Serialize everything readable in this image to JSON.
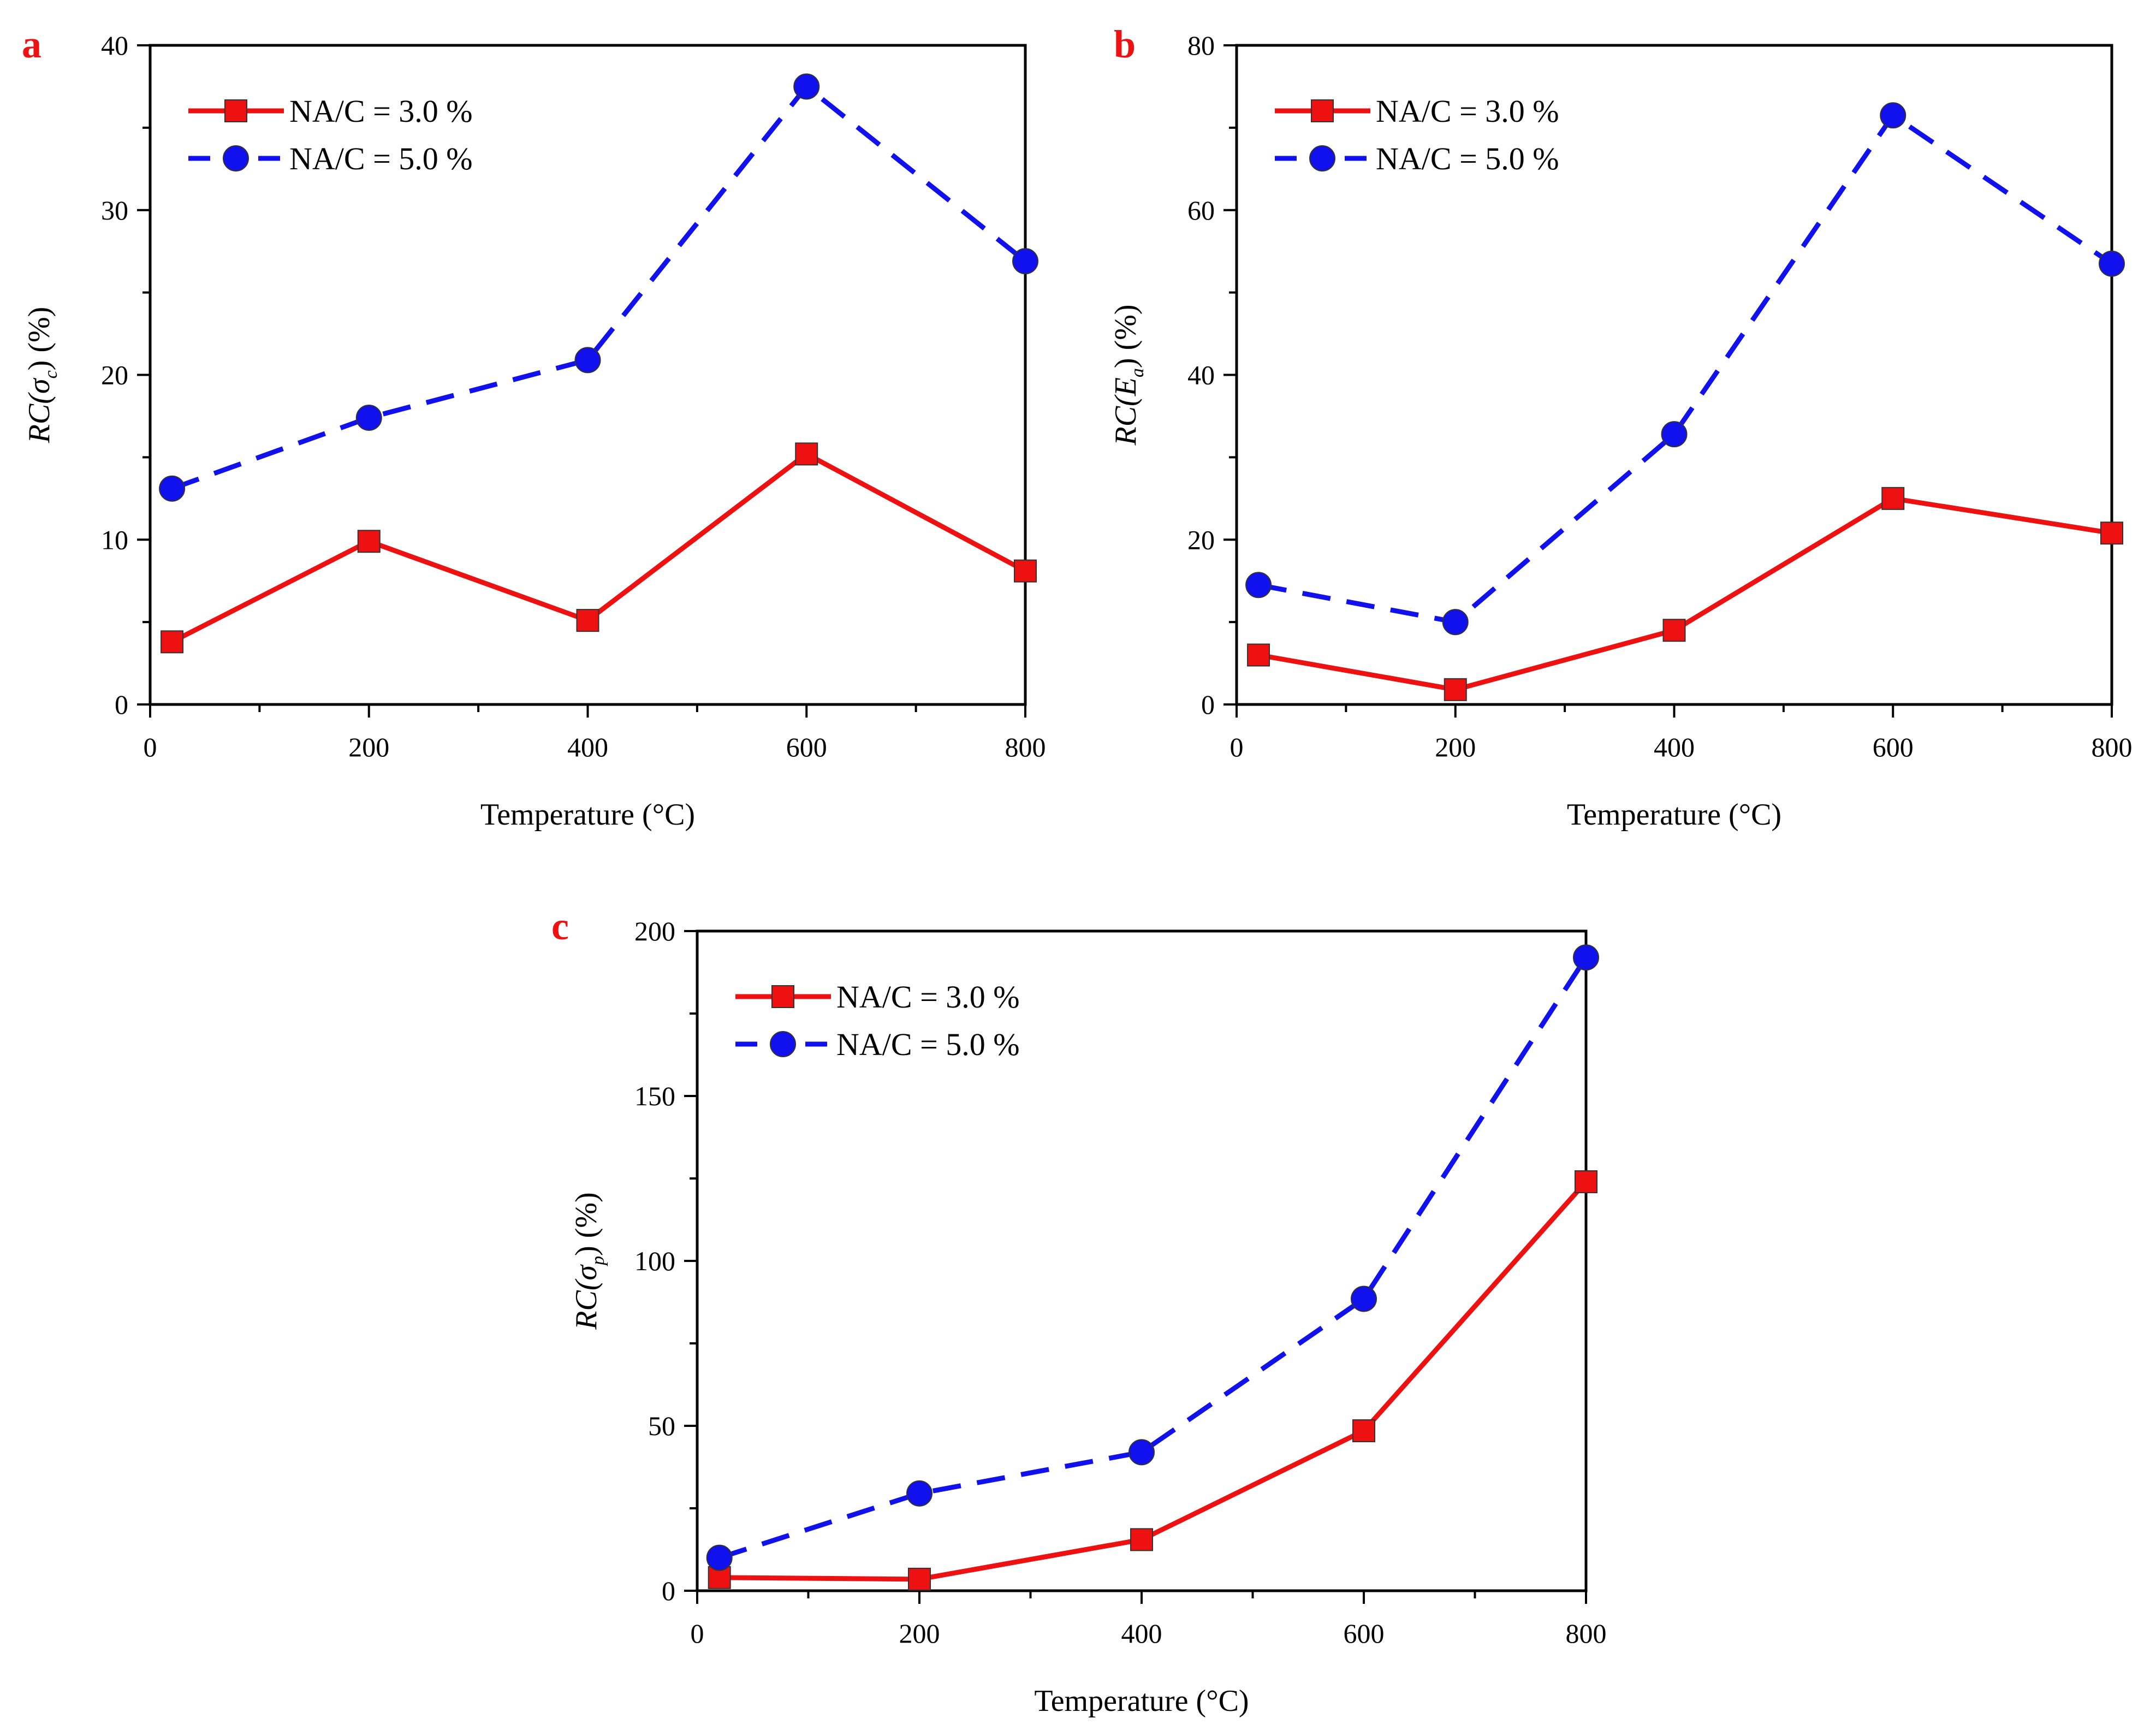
{
  "chart_data": [
    {
      "panel": "a",
      "type": "line",
      "xlabel": "Temperature (°C)",
      "ylabel": {
        "prefix": "RC(",
        "symbol": "σ",
        "subscript": "c",
        "suffix": ") (%)"
      },
      "xlim": [
        0,
        800
      ],
      "ylim": [
        0,
        40
      ],
      "xticks": [
        0,
        200,
        400,
        600,
        800
      ],
      "yticks": [
        0,
        10,
        20,
        30,
        40
      ],
      "x": [
        20,
        200,
        400,
        600,
        800
      ],
      "legend_position": "top-left",
      "series": [
        {
          "name": "NA/C = 3.0 %",
          "color": "#ee1111",
          "marker": "square",
          "dash": "solid",
          "values": [
            3.8,
            9.9,
            5.1,
            15.2,
            8.1
          ]
        },
        {
          "name": "NA/C = 5.0 %",
          "color": "#1111ee",
          "marker": "circle",
          "dash": "dashed",
          "values": [
            13.1,
            17.4,
            20.9,
            37.5,
            26.9
          ]
        }
      ]
    },
    {
      "panel": "b",
      "type": "line",
      "xlabel": "Temperature (°C)",
      "ylabel": {
        "prefix": "RC(",
        "symbol": "E",
        "subscript": "a",
        "suffix": ") (%)"
      },
      "xlim": [
        0,
        800
      ],
      "ylim": [
        0,
        80
      ],
      "xticks": [
        0,
        200,
        400,
        600,
        800
      ],
      "yticks": [
        0,
        20,
        40,
        60,
        80
      ],
      "x": [
        20,
        200,
        400,
        600,
        800
      ],
      "legend_position": "top-left",
      "series": [
        {
          "name": "NA/C = 3.0 %",
          "color": "#ee1111",
          "marker": "square",
          "dash": "solid",
          "values": [
            6.0,
            1.8,
            9.0,
            25.0,
            20.8
          ]
        },
        {
          "name": "NA/C = 5.0 %",
          "color": "#1111ee",
          "marker": "circle",
          "dash": "dashed",
          "values": [
            14.5,
            10.0,
            32.8,
            71.5,
            53.5
          ]
        }
      ]
    },
    {
      "panel": "c",
      "type": "line",
      "xlabel": "Temperature (°C)",
      "ylabel": {
        "prefix": "RC(",
        "symbol": "σ",
        "subscript": "p",
        "suffix": ") (%)"
      },
      "xlim": [
        0,
        800
      ],
      "ylim": [
        0,
        200
      ],
      "xticks": [
        0,
        200,
        400,
        600,
        800
      ],
      "yticks": [
        0,
        50,
        100,
        150,
        200
      ],
      "x": [
        20,
        200,
        400,
        600,
        800
      ],
      "legend_position": "top-left",
      "series": [
        {
          "name": "NA/C = 3.0 %",
          "color": "#ee1111",
          "marker": "square",
          "dash": "solid",
          "values": [
            4.0,
            3.5,
            15.5,
            48.5,
            124.0
          ]
        },
        {
          "name": "NA/C = 5.0 %",
          "color": "#1111ee",
          "marker": "circle",
          "dash": "dashed",
          "values": [
            10.0,
            29.5,
            42.0,
            88.5,
            192.0
          ]
        }
      ]
    }
  ]
}
